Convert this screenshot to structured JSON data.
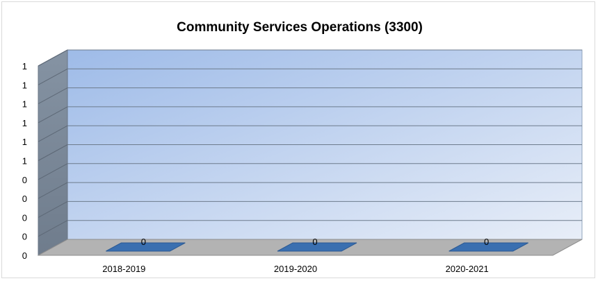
{
  "chart_data": {
    "type": "bar",
    "title": "Community Services Operations (3300)",
    "categories": [
      "2018-2019",
      "2019-2020",
      "2020-2021"
    ],
    "values": [
      0,
      0,
      0
    ],
    "data_labels": [
      "0",
      "0",
      "0"
    ],
    "y_tick_labels": [
      "0",
      "0",
      "0",
      "0",
      "0",
      "1",
      "1",
      "1",
      "1",
      "1",
      "1"
    ],
    "grid": true,
    "legend": "none",
    "style": "3d",
    "colors": {
      "bar": "#3a6fb0",
      "bar_edge": "#2c5a93",
      "back_wall_top": "#9ebbe8",
      "back_wall_bottom": "#e8eef8",
      "side_wall": "#7f8c9c",
      "floor": "#b3b3b3",
      "gridline": "#6d7b8c"
    }
  }
}
